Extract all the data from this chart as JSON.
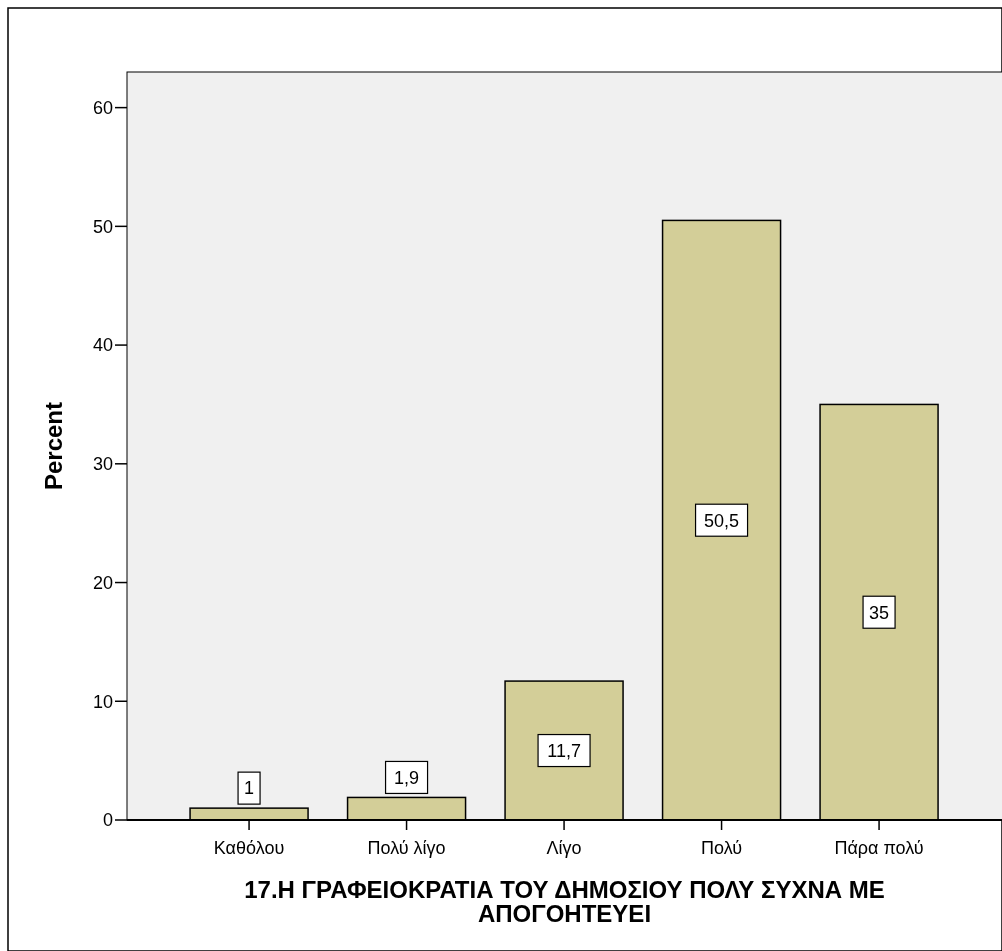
{
  "chart_data": {
    "type": "bar",
    "xlabel": "17.Η ΓΡΑΦΕΙΟΚΡΑΤΙΑ ΤΟΥ ΔΗΜΟΣΙΟΥ ΠΟΛΥ ΣΥΧΝΑ ΜΕ ΑΠΟΓΟΗΤΕΥΕΙ",
    "ylabel": "Percent",
    "categories": [
      "Καθόλου",
      "Πολύ λίγο",
      "Λίγο",
      "Πολύ",
      "Πάρα πολύ"
    ],
    "values": [
      1,
      1.9,
      11.7,
      50.5,
      35
    ],
    "value_labels": [
      "1",
      "1,9",
      "11,7",
      "50,5",
      "35"
    ],
    "color": "#d3ce98",
    "ylim": [
      0,
      63
    ],
    "yticks": [
      0,
      10,
      20,
      30,
      40,
      50,
      60
    ]
  }
}
